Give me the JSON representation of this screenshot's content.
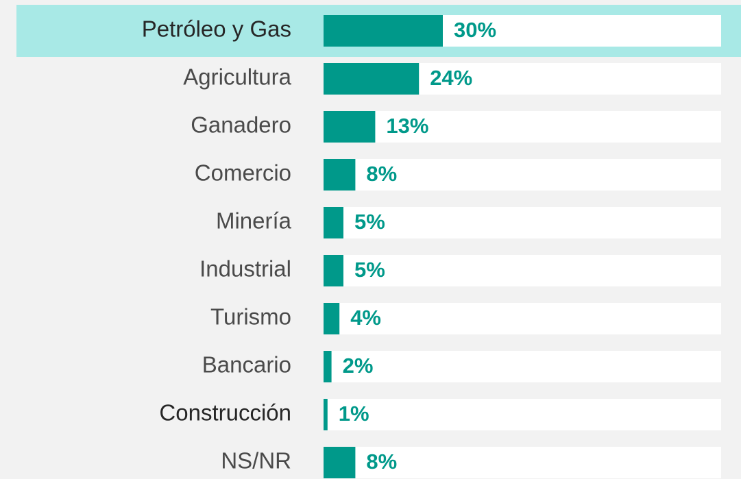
{
  "chart_data": {
    "type": "barh",
    "categories": [
      "Petróleo y Gas",
      "Agricultura",
      "Ganadero",
      "Comercio",
      "Minería",
      "Industrial",
      "Turismo",
      "Bancario",
      "Construcción",
      "NS/NR"
    ],
    "values": [
      30,
      24,
      13,
      8,
      5,
      5,
      4,
      2,
      1,
      8
    ],
    "value_labels": [
      "30%",
      "24%",
      "13%",
      "8%",
      "5%",
      "5%",
      "4%",
      "2%",
      "1%",
      "8%"
    ],
    "color": "#00998a",
    "xlim": [
      0,
      100
    ],
    "highlight": 0,
    "highlight_color": "#a8e9e6"
  }
}
